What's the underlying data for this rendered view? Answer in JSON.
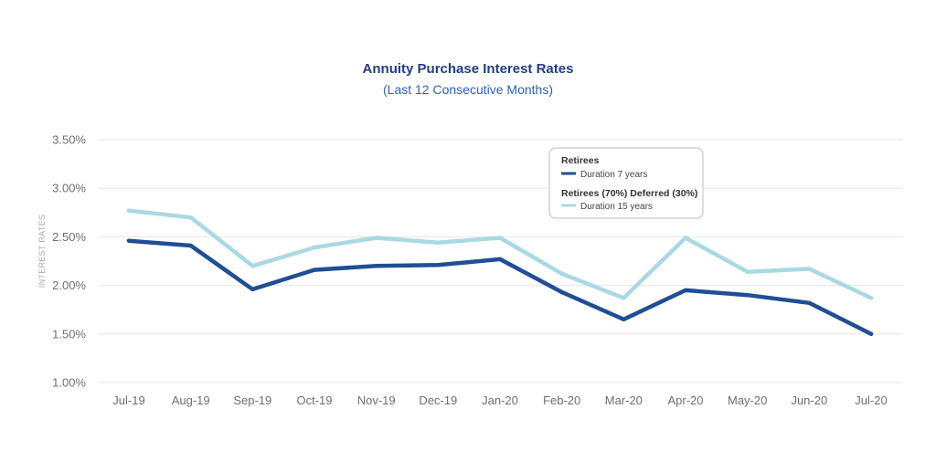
{
  "chart_data": {
    "type": "line",
    "title": "Annuity Purchase Interest Rates",
    "subtitle": "(Last 12 Consecutive Months)",
    "ylabel": "INTEREST RATES",
    "xlabel": "",
    "categories": [
      "Jul-19",
      "Aug-19",
      "Sep-19",
      "Oct-19",
      "Nov-19",
      "Dec-19",
      "Jan-20",
      "Feb-20",
      "Mar-20",
      "Apr-20",
      "May-20",
      "Jun-20",
      "Jul-20"
    ],
    "ylim": [
      1.0,
      3.5
    ],
    "yticks": [
      1.0,
      1.5,
      2.0,
      2.5,
      3.0,
      3.5
    ],
    "ytick_labels": [
      "1.00%",
      "1.50%",
      "2.00%",
      "2.50%",
      "3.00%",
      "3.50%"
    ],
    "grid": true,
    "legend_position": "top-right",
    "series": [
      {
        "name": "Duration 7 years",
        "group": "Retirees",
        "color": "#1f4e96",
        "values": [
          2.46,
          2.41,
          1.96,
          2.16,
          2.2,
          2.21,
          2.27,
          1.93,
          1.65,
          1.95,
          1.9,
          1.82,
          1.5
        ]
      },
      {
        "name": "Duration 15 years",
        "group": "Retirees (70%) Deferred (30%)",
        "color": "#a9d9e2",
        "values": [
          2.77,
          2.7,
          2.2,
          2.39,
          2.49,
          2.44,
          2.49,
          2.12,
          1.87,
          2.49,
          2.14,
          2.17,
          1.87
        ]
      }
    ]
  }
}
